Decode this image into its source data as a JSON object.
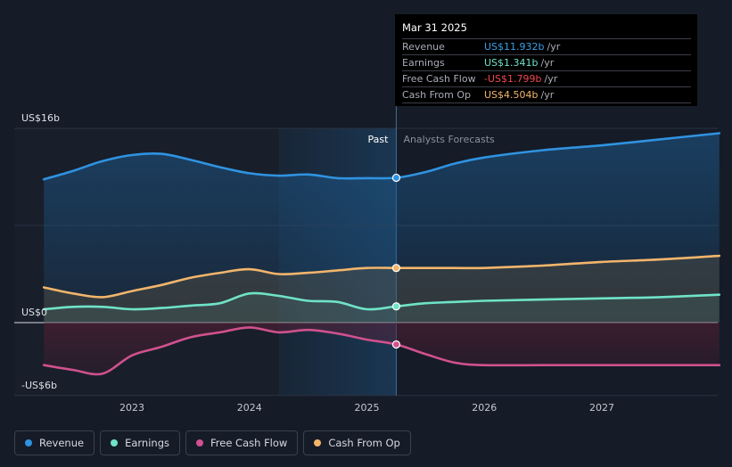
{
  "tooltip": {
    "date": "Mar 31 2025",
    "rows": [
      {
        "label": "Revenue",
        "value": "US$11.932b",
        "unit": "/yr",
        "color": "#3b9fe6"
      },
      {
        "label": "Earnings",
        "value": "US$1.341b",
        "unit": "/yr",
        "color": "#6fe3c7"
      },
      {
        "label": "Free Cash Flow",
        "value": "-US$1.799b",
        "unit": "/yr",
        "color": "#f0474f"
      },
      {
        "label": "Cash From Op",
        "value": "US$4.504b",
        "unit": "/yr",
        "color": "#f2b56b"
      }
    ]
  },
  "legend": [
    {
      "label": "Revenue",
      "color": "#2f93e0"
    },
    {
      "label": "Earnings",
      "color": "#6fe3c7"
    },
    {
      "label": "Free Cash Flow",
      "color": "#d0518e"
    },
    {
      "label": "Cash From Op",
      "color": "#f2b56b"
    }
  ],
  "chart_data": {
    "type": "line",
    "title": "",
    "ylabel": "",
    "ylim": [
      -6,
      16
    ],
    "xlim": [
      2022.25,
      2028.0
    ],
    "y_tick_labels": [
      {
        "value": 16,
        "label": "US$16b"
      },
      {
        "value": 0,
        "label": "US$0"
      },
      {
        "value": -6,
        "label": "-US$6b"
      }
    ],
    "x_ticks": [
      2023,
      2024,
      2025,
      2026,
      2027
    ],
    "x_tick_labels": [
      "2023",
      "2024",
      "2025",
      "2026",
      "2027"
    ],
    "past_label": "Past",
    "forecast_label": "Analysts Forecasts",
    "divider_x": 2025.25,
    "highlight_start_x": 2024.25,
    "series": [
      {
        "name": "Revenue",
        "color": "#2f93e0",
        "points": [
          [
            2022.25,
            11.8
          ],
          [
            2022.5,
            12.5
          ],
          [
            2022.75,
            13.3
          ],
          [
            2023.0,
            13.8
          ],
          [
            2023.25,
            13.9
          ],
          [
            2023.5,
            13.4
          ],
          [
            2023.75,
            12.8
          ],
          [
            2024.0,
            12.3
          ],
          [
            2024.25,
            12.1
          ],
          [
            2024.5,
            12.2
          ],
          [
            2024.75,
            11.9
          ],
          [
            2025.0,
            11.9
          ],
          [
            2025.25,
            11.93
          ],
          [
            2025.5,
            12.4
          ],
          [
            2025.75,
            13.1
          ],
          [
            2026.0,
            13.6
          ],
          [
            2026.5,
            14.2
          ],
          [
            2027.0,
            14.6
          ],
          [
            2027.5,
            15.1
          ],
          [
            2028.0,
            15.6
          ]
        ]
      },
      {
        "name": "Cash From Op",
        "color": "#f2b56b",
        "points": [
          [
            2022.25,
            2.9
          ],
          [
            2022.5,
            2.4
          ],
          [
            2022.75,
            2.1
          ],
          [
            2023.0,
            2.6
          ],
          [
            2023.25,
            3.1
          ],
          [
            2023.5,
            3.7
          ],
          [
            2023.75,
            4.1
          ],
          [
            2024.0,
            4.4
          ],
          [
            2024.25,
            4.0
          ],
          [
            2024.5,
            4.1
          ],
          [
            2024.75,
            4.3
          ],
          [
            2025.0,
            4.5
          ],
          [
            2025.25,
            4.5
          ],
          [
            2025.5,
            4.5
          ],
          [
            2025.75,
            4.5
          ],
          [
            2026.0,
            4.5
          ],
          [
            2026.5,
            4.7
          ],
          [
            2027.0,
            5.0
          ],
          [
            2027.5,
            5.2
          ],
          [
            2028.0,
            5.5
          ]
        ]
      },
      {
        "name": "Earnings",
        "color": "#6fe3c7",
        "points": [
          [
            2022.25,
            1.1
          ],
          [
            2022.5,
            1.3
          ],
          [
            2022.75,
            1.3
          ],
          [
            2023.0,
            1.1
          ],
          [
            2023.25,
            1.2
          ],
          [
            2023.5,
            1.4
          ],
          [
            2023.75,
            1.6
          ],
          [
            2024.0,
            2.4
          ],
          [
            2024.25,
            2.2
          ],
          [
            2024.5,
            1.8
          ],
          [
            2024.75,
            1.7
          ],
          [
            2025.0,
            1.1
          ],
          [
            2025.25,
            1.341
          ],
          [
            2025.5,
            1.6
          ],
          [
            2025.75,
            1.7
          ],
          [
            2026.0,
            1.8
          ],
          [
            2026.5,
            1.9
          ],
          [
            2027.0,
            2.0
          ],
          [
            2027.5,
            2.1
          ],
          [
            2028.0,
            2.3
          ]
        ]
      },
      {
        "name": "Free Cash Flow",
        "color": "#d0518e",
        "points": [
          [
            2022.25,
            -3.5
          ],
          [
            2022.5,
            -3.9
          ],
          [
            2022.75,
            -4.2
          ],
          [
            2023.0,
            -2.7
          ],
          [
            2023.25,
            -2.0
          ],
          [
            2023.5,
            -1.2
          ],
          [
            2023.75,
            -0.8
          ],
          [
            2024.0,
            -0.4
          ],
          [
            2024.25,
            -0.8
          ],
          [
            2024.5,
            -0.6
          ],
          [
            2024.75,
            -0.9
          ],
          [
            2025.0,
            -1.4
          ],
          [
            2025.25,
            -1.799
          ],
          [
            2025.5,
            -2.6
          ],
          [
            2025.75,
            -3.3
          ],
          [
            2026.0,
            -3.5
          ],
          [
            2026.5,
            -3.5
          ],
          [
            2027.0,
            -3.5
          ],
          [
            2027.5,
            -3.5
          ],
          [
            2028.0,
            -3.5
          ]
        ]
      }
    ]
  }
}
